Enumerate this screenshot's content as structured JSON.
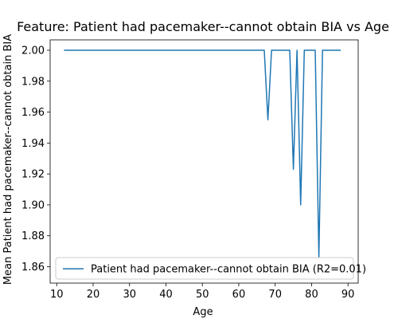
{
  "chart_data": {
    "type": "line",
    "title": "Feature: Patient had pacemaker--cannot obtain BIA vs Age",
    "xlabel": "Age",
    "ylabel": "Mean Patient had pacemaker--cannot obtain BIA",
    "xlim": [
      8.2,
      92.8
    ],
    "ylim": [
      1.8494,
      2.0067
    ],
    "xticks": [
      10,
      20,
      30,
      40,
      50,
      60,
      70,
      80,
      90
    ],
    "yticks": [
      1.86,
      1.88,
      1.9,
      1.92,
      1.94,
      1.96,
      1.98,
      2.0
    ],
    "ytick_labels": [
      "1.86",
      "1.88",
      "1.90",
      "1.92",
      "1.94",
      "1.96",
      "1.98",
      "2.00"
    ],
    "grid": false,
    "legend_position": "lower-right",
    "series": [
      {
        "name": "Patient had pacemaker--cannot obtain BIA (R2=0.01)",
        "color": "#1f77b4",
        "x": [
          12,
          13,
          14,
          15,
          16,
          17,
          18,
          19,
          20,
          21,
          22,
          23,
          24,
          25,
          26,
          27,
          28,
          29,
          30,
          31,
          32,
          33,
          34,
          35,
          36,
          37,
          38,
          39,
          40,
          41,
          42,
          43,
          44,
          45,
          46,
          47,
          48,
          49,
          50,
          51,
          52,
          53,
          54,
          55,
          56,
          57,
          58,
          59,
          60,
          61,
          62,
          63,
          64,
          65,
          66,
          67,
          68,
          69,
          70,
          71,
          72,
          73,
          74,
          75,
          76,
          77,
          78,
          79,
          80,
          81,
          82,
          83,
          84,
          85,
          86,
          87,
          88
        ],
        "y": [
          2,
          2,
          2,
          2,
          2,
          2,
          2,
          2,
          2,
          2,
          2,
          2,
          2,
          2,
          2,
          2,
          2,
          2,
          2,
          2,
          2,
          2,
          2,
          2,
          2,
          2,
          2,
          2,
          2,
          2,
          2,
          2,
          2,
          2,
          2,
          2,
          2,
          2,
          2,
          2,
          2,
          2,
          2,
          2,
          2,
          2,
          2,
          2,
          2,
          2,
          2,
          2,
          2,
          2,
          2,
          2,
          1.955,
          2,
          2,
          2,
          2,
          2,
          2,
          1.923,
          2,
          1.9,
          2,
          2,
          2,
          2,
          1.866,
          2,
          2,
          2,
          2,
          2,
          2
        ]
      }
    ]
  }
}
